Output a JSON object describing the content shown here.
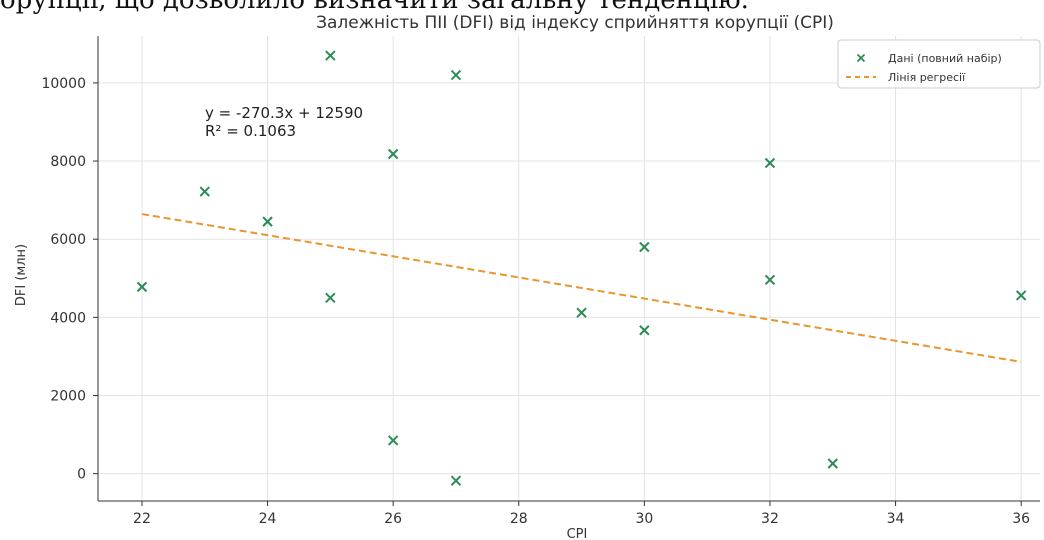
{
  "cropped_text": "орупції, що дозволило визначити загальну тенденцію.",
  "chart_data": {
    "type": "scatter",
    "title": "Залежність ПІІ (DFI) від індексу сприйняття корупції (CPI)",
    "xlabel": "CPI",
    "ylabel": "DFI (млн)",
    "xlim": [
      21.3,
      36.3
    ],
    "ylim": [
      -700,
      11200
    ],
    "xticks": [
      22,
      24,
      26,
      28,
      30,
      32,
      34,
      36
    ],
    "yticks": [
      0,
      2000,
      4000,
      6000,
      8000,
      10000
    ],
    "grid": true,
    "legend_position": "top-right",
    "series": [
      {
        "name": "Дані (повний набір)",
        "marker": "x",
        "color": "#2e8b57",
        "points": [
          [
            22,
            4780
          ],
          [
            23,
            7220
          ],
          [
            24,
            6450
          ],
          [
            25,
            10700
          ],
          [
            25,
            4500
          ],
          [
            26,
            8180
          ],
          [
            26,
            850
          ],
          [
            27,
            10200
          ],
          [
            27,
            -180
          ],
          [
            29,
            4120
          ],
          [
            30,
            5800
          ],
          [
            30,
            3670
          ],
          [
            32,
            7950
          ],
          [
            32,
            4960
          ],
          [
            33,
            260
          ],
          [
            36,
            4560
          ]
        ]
      },
      {
        "name": "Лінія регресії",
        "kind": "line",
        "style": "dashed",
        "color": "#e8962d",
        "slope": -270.3,
        "intercept": 12590,
        "x_range": [
          22,
          36
        ]
      }
    ],
    "annotation": {
      "equation": "y = -270.3x + 12590",
      "r2_label": "R² = 0.1063"
    }
  }
}
